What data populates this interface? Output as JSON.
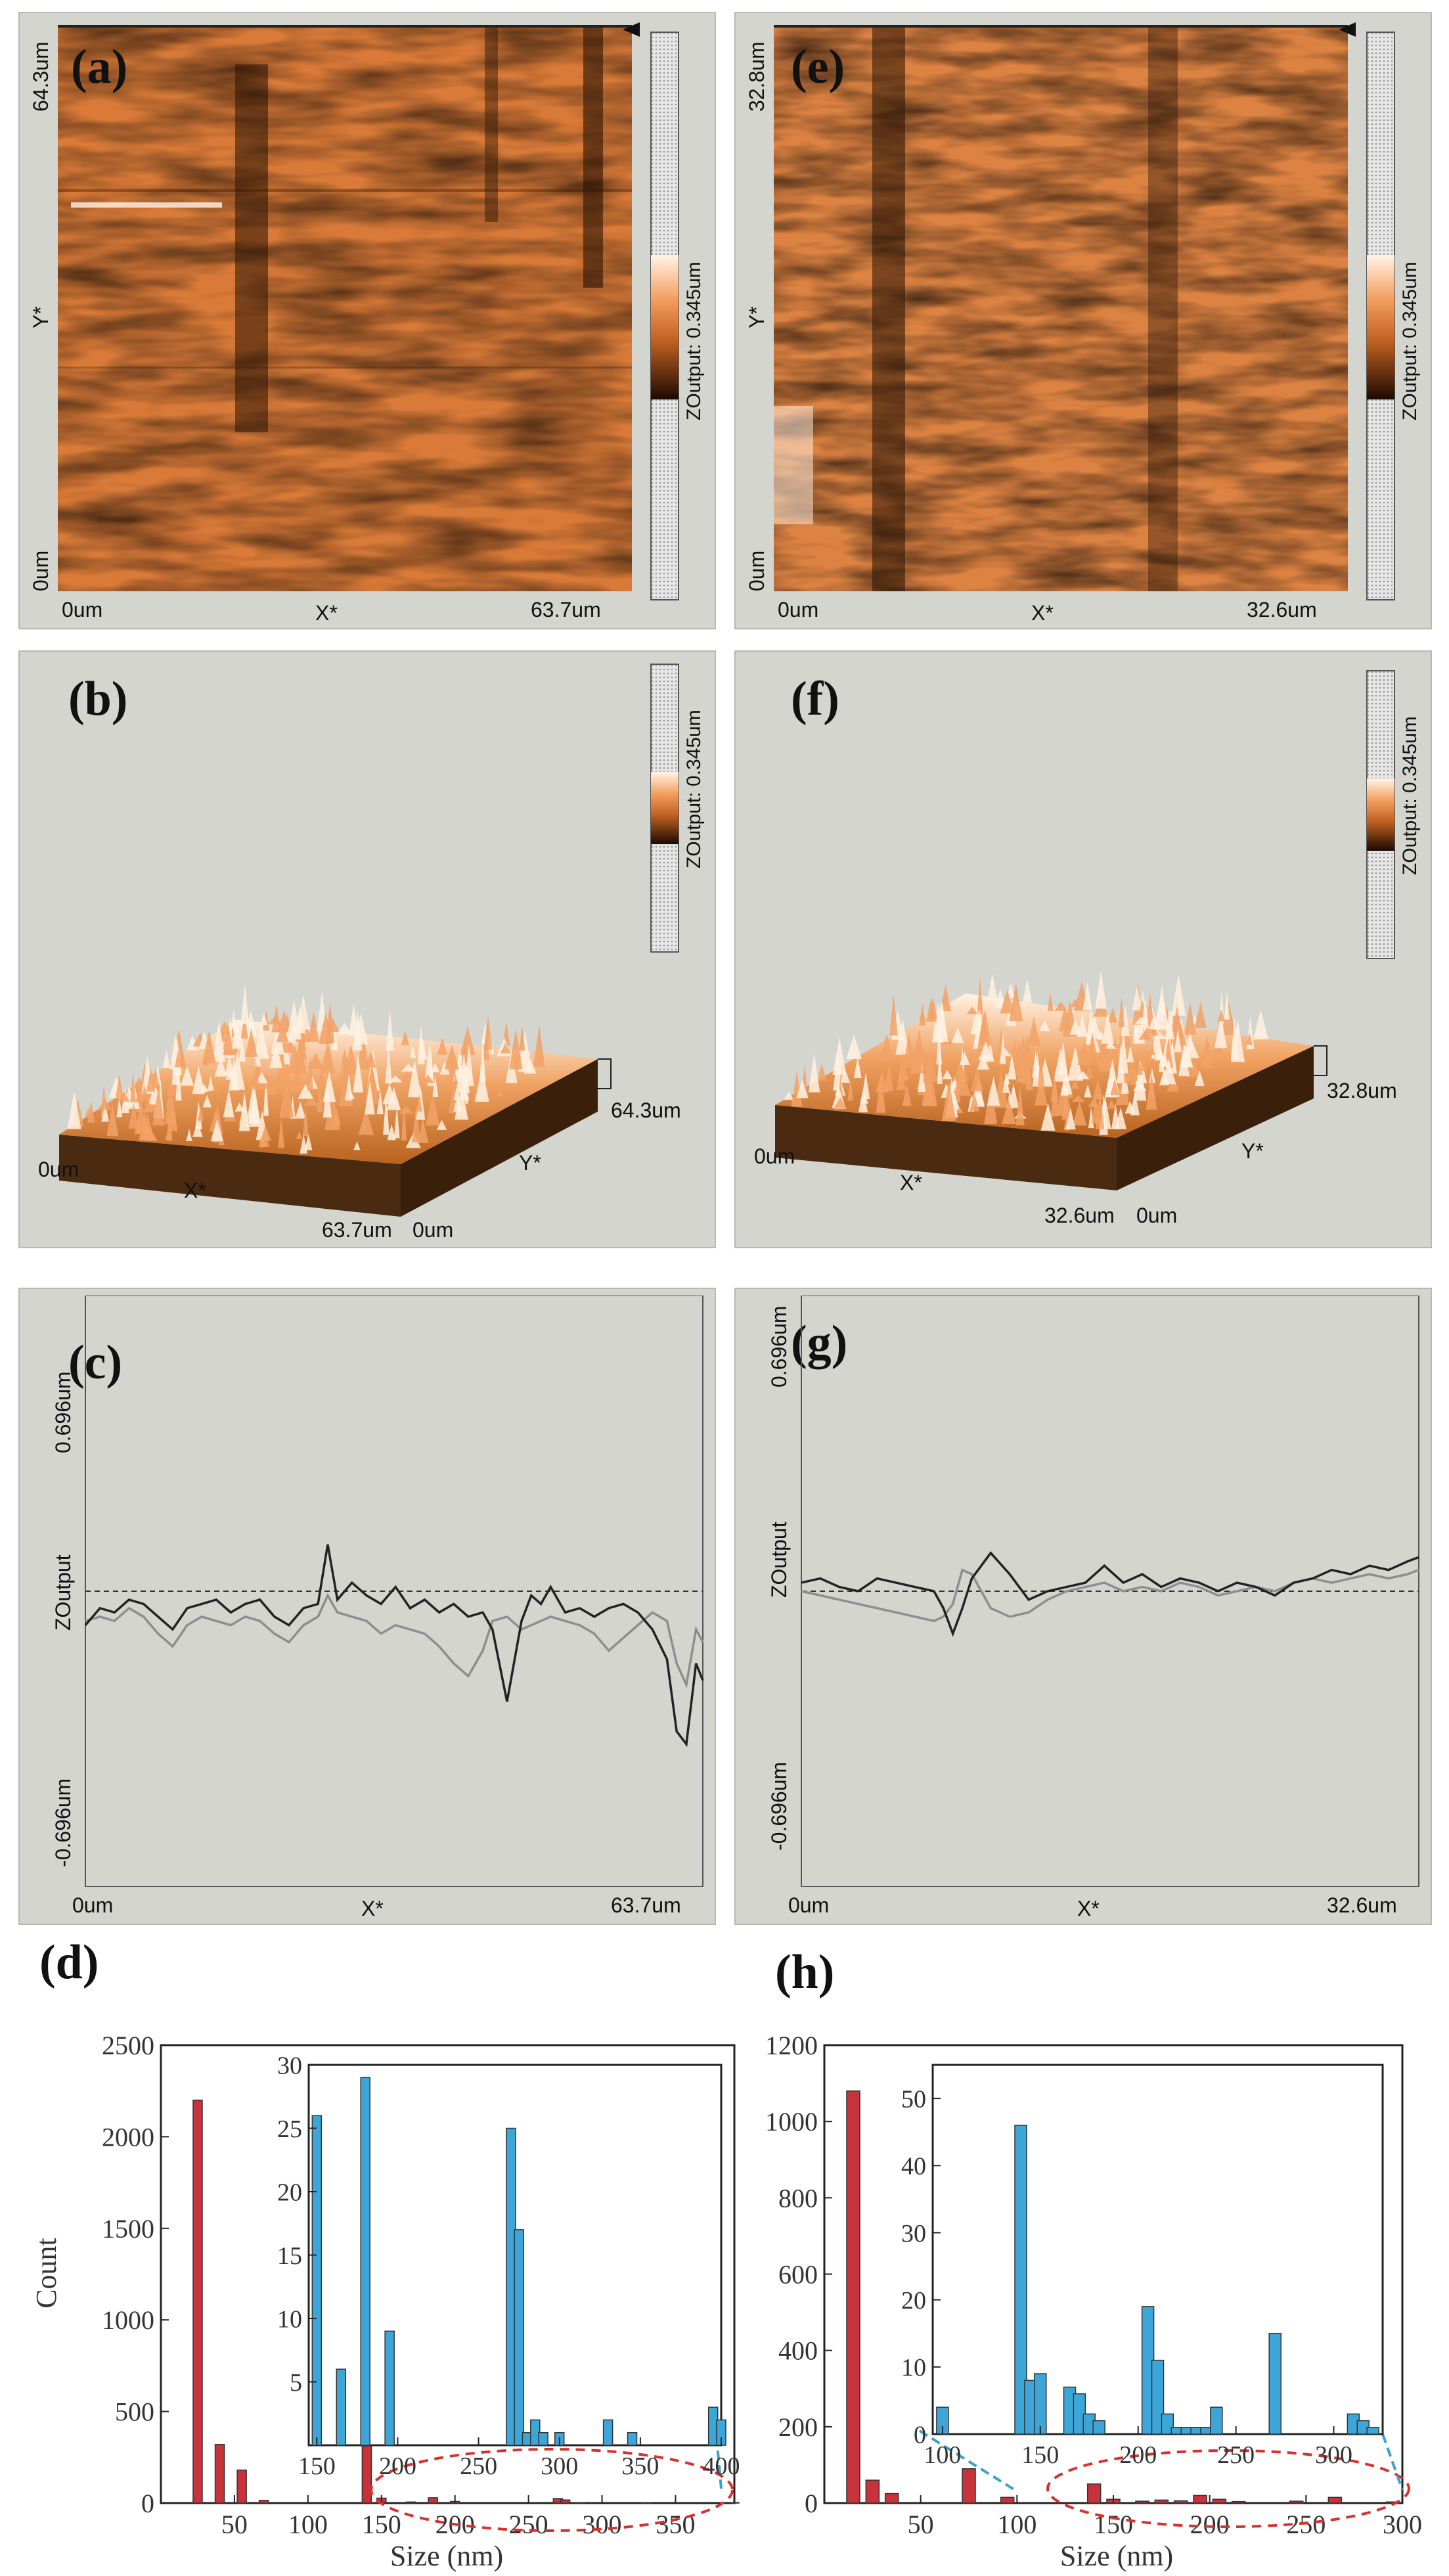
{
  "colors": {
    "panel_bg": "#d4d5cf",
    "afm_light": "#f2a266",
    "afm_mid": "#d97a38",
    "afm_dark": "#2b1404",
    "hist_main": "#c8323a",
    "hist_inset": "#3da6d8",
    "profile_black": "#222222",
    "profile_gray": "#8e8e8e",
    "zoom_ellipse": "#d9302c",
    "zoom_link": "#3aa0d0"
  },
  "panels": {
    "a": {
      "letter": "(a)",
      "y_top": "64.3um",
      "y_bottom": "0um",
      "y_axis": "Y*",
      "x_left": "0um",
      "x_right": "63.7um",
      "x_axis": "X*",
      "colorbar": "ZOutput: 0.345um"
    },
    "e": {
      "letter": "(e)",
      "y_top": "32.8um",
      "y_bottom": "0um",
      "y_axis": "Y*",
      "x_left": "0um",
      "x_right": "32.6um",
      "x_axis": "X*",
      "colorbar": "ZOutput: 0.345um"
    },
    "b": {
      "letter": "(b)",
      "x_left": "0um",
      "x_axis": "X*",
      "x_right": "63.7um",
      "y_origin": "0um",
      "y_axis": "Y*",
      "y_far": "64.3um",
      "colorbar": "ZOutput: 0.345um"
    },
    "f": {
      "letter": "(f)",
      "x_left": "0um",
      "x_axis": "X*",
      "x_right": "32.6um",
      "y_origin": "0um",
      "y_axis": "Y*",
      "y_far": "32.8um",
      "colorbar": "ZOutput: 0.345um"
    },
    "c": {
      "letter": "(c)",
      "y_top": "0.696um",
      "y_mid": "ZOutput",
      "y_bottom": "-0.696um",
      "x_left": "0um",
      "x_axis": "X*",
      "x_right": "63.7um"
    },
    "g": {
      "letter": "(g)",
      "y_top": "0.696um",
      "y_mid": "ZOutput",
      "y_bottom": "-0.696um",
      "x_left": "0um",
      "x_axis": "X*",
      "x_right": "32.6um"
    },
    "d": {
      "letter": "(d)"
    },
    "h": {
      "letter": "(h)"
    }
  },
  "chart_data": [
    {
      "id": "c",
      "type": "line",
      "xlim": [
        0,
        63.7
      ],
      "ylim": [
        -0.696,
        0.696
      ],
      "reference_line": 0,
      "series": [
        {
          "color": "black",
          "x": [
            0,
            1.5,
            3,
            4.5,
            6,
            7.5,
            9,
            10.5,
            12,
            13.5,
            15,
            16.5,
            18,
            19.5,
            21,
            22.5,
            24,
            25,
            26,
            27.5,
            29,
            30.5,
            32,
            33.5,
            35,
            36.5,
            38,
            39.5,
            41,
            42,
            43.5,
            45,
            46,
            47,
            48,
            49.5,
            51,
            52.5,
            54,
            55.5,
            57,
            58.5,
            60,
            61,
            62,
            63,
            63.7
          ],
          "y": [
            -0.08,
            -0.04,
            -0.05,
            -0.02,
            -0.03,
            -0.06,
            -0.09,
            -0.04,
            -0.03,
            -0.02,
            -0.05,
            -0.03,
            -0.02,
            -0.06,
            -0.08,
            -0.04,
            -0.03,
            0.11,
            -0.02,
            0.02,
            -0.01,
            -0.03,
            0.01,
            -0.04,
            -0.02,
            -0.05,
            -0.03,
            -0.06,
            -0.05,
            -0.09,
            -0.26,
            -0.07,
            -0.01,
            -0.03,
            0.01,
            -0.05,
            -0.04,
            -0.06,
            -0.04,
            -0.03,
            -0.05,
            -0.09,
            -0.16,
            -0.33,
            -0.36,
            -0.17,
            -0.21
          ]
        },
        {
          "color": "gray",
          "x": [
            0,
            1.5,
            3,
            4.5,
            6,
            7.5,
            9,
            10.5,
            12,
            13.5,
            15,
            16.5,
            18,
            19.5,
            21,
            22.5,
            24,
            25,
            26,
            27.5,
            29,
            30.5,
            32,
            33.5,
            35,
            36.5,
            38,
            39.5,
            41,
            42,
            43.5,
            45,
            46,
            47,
            48,
            49.5,
            51,
            52.5,
            54,
            55.5,
            57,
            58.5,
            60,
            61,
            62,
            63,
            63.7
          ],
          "y": [
            -0.07,
            -0.06,
            -0.07,
            -0.04,
            -0.06,
            -0.1,
            -0.13,
            -0.08,
            -0.06,
            -0.07,
            -0.08,
            -0.06,
            -0.07,
            -0.1,
            -0.12,
            -0.08,
            -0.06,
            -0.01,
            -0.05,
            -0.06,
            -0.07,
            -0.1,
            -0.08,
            -0.09,
            -0.1,
            -0.13,
            -0.17,
            -0.2,
            -0.14,
            -0.07,
            -0.06,
            -0.09,
            -0.08,
            -0.07,
            -0.06,
            -0.07,
            -0.08,
            -0.1,
            -0.14,
            -0.11,
            -0.08,
            -0.05,
            -0.07,
            -0.17,
            -0.22,
            -0.09,
            -0.12
          ]
        }
      ]
    },
    {
      "id": "g",
      "type": "line",
      "xlim": [
        0,
        32.6
      ],
      "ylim": [
        -0.696,
        0.696
      ],
      "reference_line": 0,
      "series": [
        {
          "color": "black",
          "x": [
            0,
            1,
            2,
            3,
            4,
            5,
            6,
            7,
            7.5,
            8,
            8.5,
            9,
            10,
            11,
            12,
            13,
            14,
            15,
            16,
            17,
            18,
            19,
            20,
            21,
            22,
            23,
            24,
            25,
            26,
            27,
            28,
            29,
            30,
            31,
            32,
            32.6
          ],
          "y": [
            0.02,
            0.03,
            0.01,
            0.0,
            0.03,
            0.02,
            0.01,
            0.0,
            -0.04,
            -0.1,
            -0.04,
            0.03,
            0.09,
            0.04,
            -0.02,
            0.0,
            0.01,
            0.02,
            0.06,
            0.02,
            0.04,
            0.01,
            0.03,
            0.02,
            0.0,
            0.02,
            0.01,
            -0.01,
            0.02,
            0.03,
            0.05,
            0.04,
            0.06,
            0.05,
            0.07,
            0.08
          ]
        },
        {
          "color": "gray",
          "x": [
            0,
            1,
            2,
            3,
            4,
            5,
            6,
            7,
            7.5,
            8,
            8.5,
            9,
            10,
            11,
            12,
            13,
            14,
            15,
            16,
            17,
            18,
            19,
            20,
            21,
            22,
            23,
            24,
            25,
            26,
            27,
            28,
            29,
            30,
            31,
            32,
            32.6
          ],
          "y": [
            0.0,
            -0.01,
            -0.02,
            -0.03,
            -0.04,
            -0.05,
            -0.06,
            -0.07,
            -0.06,
            -0.03,
            0.05,
            0.04,
            -0.04,
            -0.06,
            -0.05,
            -0.02,
            0.0,
            0.01,
            0.02,
            0.0,
            0.01,
            0.0,
            0.02,
            0.01,
            -0.01,
            0.0,
            0.01,
            0.0,
            0.02,
            0.03,
            0.02,
            0.03,
            0.04,
            0.03,
            0.04,
            0.05
          ]
        }
      ]
    },
    {
      "id": "d",
      "type": "bar",
      "xlabel": "Size (nm)",
      "ylabel": "Count",
      "xlim": [
        0,
        390
      ],
      "ylim": [
        0,
        2500
      ],
      "xticks": [
        50,
        100,
        150,
        200,
        250,
        300,
        350
      ],
      "yticks": [
        0,
        500,
        1000,
        1500,
        2000,
        2500
      ],
      "x": [
        25,
        40,
        55,
        70,
        140,
        150,
        170,
        185,
        200,
        270,
        275,
        285,
        330,
        390
      ],
      "values": [
        2200,
        320,
        180,
        15,
        340,
        27,
        6,
        29,
        9,
        25,
        17,
        2,
        2,
        3
      ],
      "inset": {
        "type": "bar",
        "xlim": [
          145,
          400
        ],
        "ylim": [
          0,
          30
        ],
        "xticks": [
          150,
          200,
          250,
          300,
          350,
          400
        ],
        "yticks": [
          5,
          10,
          15,
          20,
          25,
          30
        ],
        "x": [
          150,
          165,
          180,
          195,
          270,
          275,
          280,
          285,
          290,
          300,
          330,
          345,
          395,
          400
        ],
        "values": [
          26,
          6,
          29,
          9,
          25,
          17,
          1,
          2,
          1,
          1,
          2,
          1,
          3,
          2
        ]
      }
    },
    {
      "id": "h",
      "type": "bar",
      "xlabel": "Size (nm)",
      "xlim": [
        0,
        300
      ],
      "ylim": [
        0,
        1200
      ],
      "xticks": [
        50,
        100,
        150,
        200,
        250,
        300
      ],
      "yticks": [
        0,
        200,
        400,
        600,
        800,
        1000,
        1200
      ],
      "x": [
        15,
        25,
        35,
        75,
        95,
        140,
        150,
        165,
        175,
        185,
        195,
        205,
        215,
        245,
        265,
        295
      ],
      "values": [
        1080,
        60,
        25,
        90,
        15,
        50,
        10,
        5,
        8,
        6,
        20,
        10,
        4,
        5,
        15,
        3
      ],
      "inset": {
        "type": "bar",
        "xlim": [
          95,
          325
        ],
        "ylim": [
          0,
          55
        ],
        "xticks": [
          100,
          150,
          200,
          250,
          300
        ],
        "yticks": [
          0,
          10,
          20,
          30,
          40,
          50
        ],
        "x": [
          100,
          140,
          145,
          150,
          165,
          170,
          175,
          180,
          205,
          210,
          215,
          220,
          225,
          230,
          235,
          240,
          270,
          310,
          315,
          320
        ],
        "values": [
          4,
          46,
          8,
          9,
          7,
          6,
          3,
          2,
          19,
          11,
          3,
          1,
          1,
          1,
          1,
          4,
          15,
          3,
          2,
          1
        ]
      }
    }
  ]
}
